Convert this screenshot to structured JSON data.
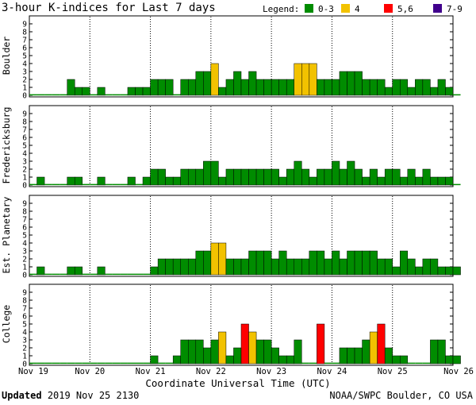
{
  "title": "3-hour K-indices for Last 7 days",
  "legend": {
    "label": "Legend:",
    "items": [
      {
        "label": "0-3",
        "color": "#008C00"
      },
      {
        "label": "4",
        "color": "#F2C200"
      },
      {
        "label": "5,6",
        "color": "#FF0000"
      },
      {
        "label": "7-9",
        "color": "#40008C"
      }
    ]
  },
  "footer": {
    "updated_label": "Updated",
    "updated_value": "2019 Nov 25 2130",
    "credit": "NOAA/SWPC Boulder, CO USA"
  },
  "chart_data": {
    "type": "bar",
    "title": "3-hour K-indices for Last 7 days",
    "xlabel": "Coordinate Universal Time (UTC)",
    "x_ticks": [
      "Nov 19",
      "Nov 20",
      "Nov 21",
      "Nov 22",
      "Nov 23",
      "Nov 24",
      "Nov 25",
      "Nov 26"
    ],
    "y_ticks": [
      0,
      1,
      2,
      3,
      4,
      5,
      6,
      7,
      8,
      9
    ],
    "ylim": [
      0,
      9
    ],
    "slots_per_day": 8,
    "series": [
      {
        "name": "Boulder",
        "values": [
          0,
          0,
          0,
          0,
          0,
          2,
          1,
          1,
          0,
          1,
          0,
          0,
          0,
          1,
          1,
          1,
          2,
          2,
          2,
          0,
          2,
          2,
          3,
          3,
          4,
          1,
          2,
          3,
          2,
          3,
          2,
          2,
          2,
          2,
          2,
          4,
          4,
          4,
          2,
          2,
          2,
          3,
          3,
          3,
          2,
          2,
          2,
          1,
          2,
          2,
          1,
          2,
          2,
          1,
          2,
          1,
          0
        ]
      },
      {
        "name": "Fredericksburg",
        "values": [
          0,
          1,
          0,
          0,
          0,
          1,
          1,
          0,
          0,
          1,
          0,
          0,
          0,
          1,
          0,
          1,
          2,
          2,
          1,
          1,
          2,
          2,
          2,
          3,
          3,
          1,
          2,
          2,
          2,
          2,
          2,
          2,
          2,
          1,
          2,
          3,
          2,
          1,
          2,
          2,
          3,
          2,
          3,
          2,
          1,
          2,
          1,
          2,
          2,
          1,
          2,
          1,
          2,
          1,
          1,
          1,
          0
        ]
      },
      {
        "name": "Est. Planetary",
        "values": [
          0,
          1,
          0,
          0,
          0,
          1,
          1,
          0,
          0,
          1,
          0,
          0,
          0,
          0,
          0,
          0,
          1,
          2,
          2,
          2,
          2,
          2,
          3,
          3,
          4,
          4,
          2,
          2,
          2,
          3,
          3,
          3,
          2,
          3,
          2,
          2,
          2,
          3,
          3,
          2,
          3,
          2,
          3,
          3,
          3,
          3,
          2,
          2,
          1,
          3,
          2,
          1,
          2,
          2,
          1,
          1,
          1
        ]
      },
      {
        "name": "College",
        "values": [
          0,
          0,
          0,
          0,
          0,
          0,
          0,
          0,
          0,
          0,
          0,
          0,
          0,
          0,
          0,
          0,
          1,
          0,
          0,
          1,
          3,
          3,
          3,
          2,
          3,
          4,
          1,
          2,
          5,
          4,
          3,
          3,
          2,
          1,
          1,
          3,
          0,
          0,
          5,
          0,
          0,
          2,
          2,
          2,
          3,
          4,
          5,
          2,
          1,
          1,
          0,
          0,
          0,
          3,
          3,
          1,
          1
        ]
      }
    ]
  }
}
